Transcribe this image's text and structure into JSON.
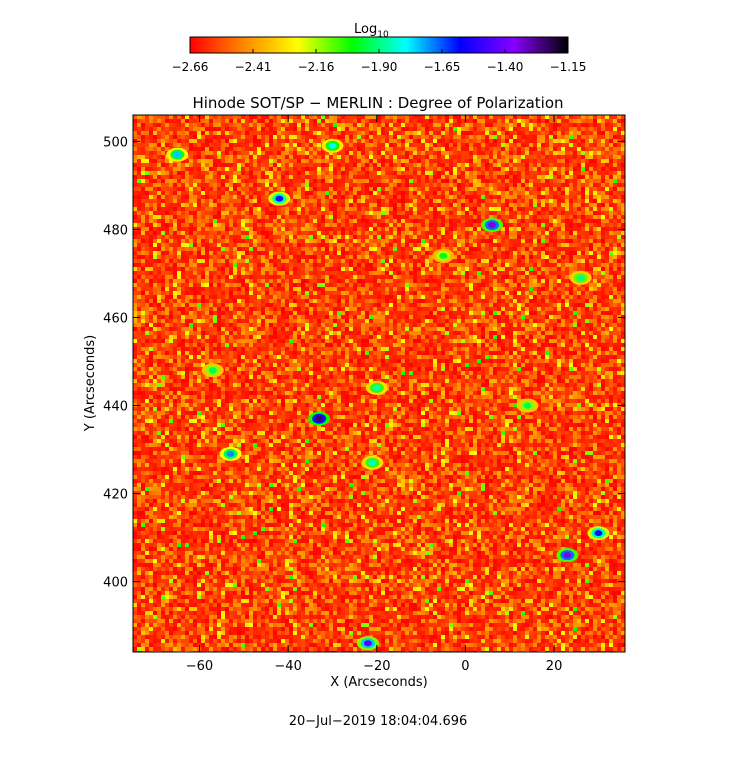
{
  "chart_data": {
    "type": "heatmap",
    "title": "Hinode SOT/SP − MERLIN : Degree of Polarization",
    "xlabel": "X (Arcseconds)",
    "ylabel": "Y (Arcseconds)",
    "xlim": [
      -75,
      36
    ],
    "ylim": [
      384,
      506
    ],
    "xticks": [
      -60,
      -40,
      -20,
      0,
      20
    ],
    "xtick_labels": [
      "−60",
      "−40",
      "−20",
      "0",
      "20"
    ],
    "yticks": [
      400,
      420,
      440,
      460,
      480,
      500
    ],
    "ytick_labels": [
      "400",
      "420",
      "440",
      "460",
      "480",
      "500"
    ],
    "colorbar": {
      "label": "Log",
      "label_sub": "10",
      "range": [
        -2.66,
        -1.15
      ],
      "ticks": [
        "−2.66",
        "−2.41",
        "−2.16",
        "−1.90",
        "−1.65",
        "−1.40",
        "−1.15"
      ],
      "colormap": [
        "#ff0000",
        "#ff8800",
        "#ffff00",
        "#00ff00",
        "#00ffff",
        "#0000ff",
        "#8800ff",
        "#000000"
      ]
    },
    "features": [
      {
        "x": -33,
        "y": 437,
        "value": -1.25
      },
      {
        "x": 6,
        "y": 481,
        "value": -1.35
      },
      {
        "x": 23,
        "y": 406,
        "value": -1.35
      },
      {
        "x": -22,
        "y": 386,
        "value": -1.45
      },
      {
        "x": -42,
        "y": 487,
        "value": -1.6
      },
      {
        "x": -53,
        "y": 429,
        "value": -1.7
      },
      {
        "x": 30,
        "y": 411,
        "value": -1.6
      },
      {
        "x": -65,
        "y": 497,
        "value": -1.75
      },
      {
        "x": -30,
        "y": 499,
        "value": -1.8
      },
      {
        "x": -21,
        "y": 427,
        "value": -1.85
      },
      {
        "x": -20,
        "y": 444,
        "value": -1.85
      },
      {
        "x": 26,
        "y": 469,
        "value": -1.9
      },
      {
        "x": -57,
        "y": 448,
        "value": -1.95
      },
      {
        "x": 14,
        "y": 440,
        "value": -1.95
      },
      {
        "x": -5,
        "y": 474,
        "value": -2.0
      }
    ]
  },
  "footer": {
    "timestamp": "20−Jul−2019 18:04:04.696"
  }
}
